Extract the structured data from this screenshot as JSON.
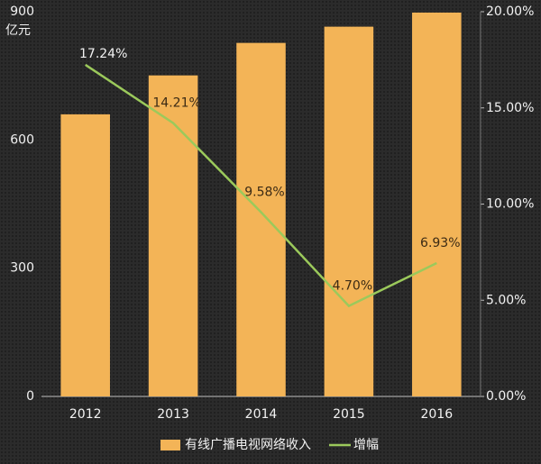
{
  "chart_data": {
    "type": "bar",
    "y_label": "亿元",
    "categories": [
      "2012",
      "2013",
      "2014",
      "2015",
      "2016"
    ],
    "series": [
      {
        "name": "有线广播电视网络收入",
        "type": "bar",
        "color": "#f3b457",
        "values": [
          660,
          751,
          827,
          865,
          898
        ]
      },
      {
        "name": "增幅",
        "type": "line",
        "axis": "y2",
        "color": "#9bc95b",
        "values": [
          17.24,
          14.21,
          9.58,
          4.7,
          6.93
        ],
        "value_labels": [
          "17.24%",
          "14.21%",
          "9.58%",
          "4.70%",
          "6.93%"
        ]
      }
    ],
    "ylim": [
      0,
      900
    ],
    "yticks": [
      0,
      300,
      600,
      900
    ],
    "y2lim": [
      0,
      20
    ],
    "y2ticks": [
      {
        "value": 0,
        "label": "0.00%"
      },
      {
        "value": 5,
        "label": "5.00%"
      },
      {
        "value": 10,
        "label": "10.00%"
      },
      {
        "value": 15,
        "label": "15.00%"
      },
      {
        "value": 20,
        "label": "20.00%"
      }
    ],
    "legend": "bottom"
  }
}
